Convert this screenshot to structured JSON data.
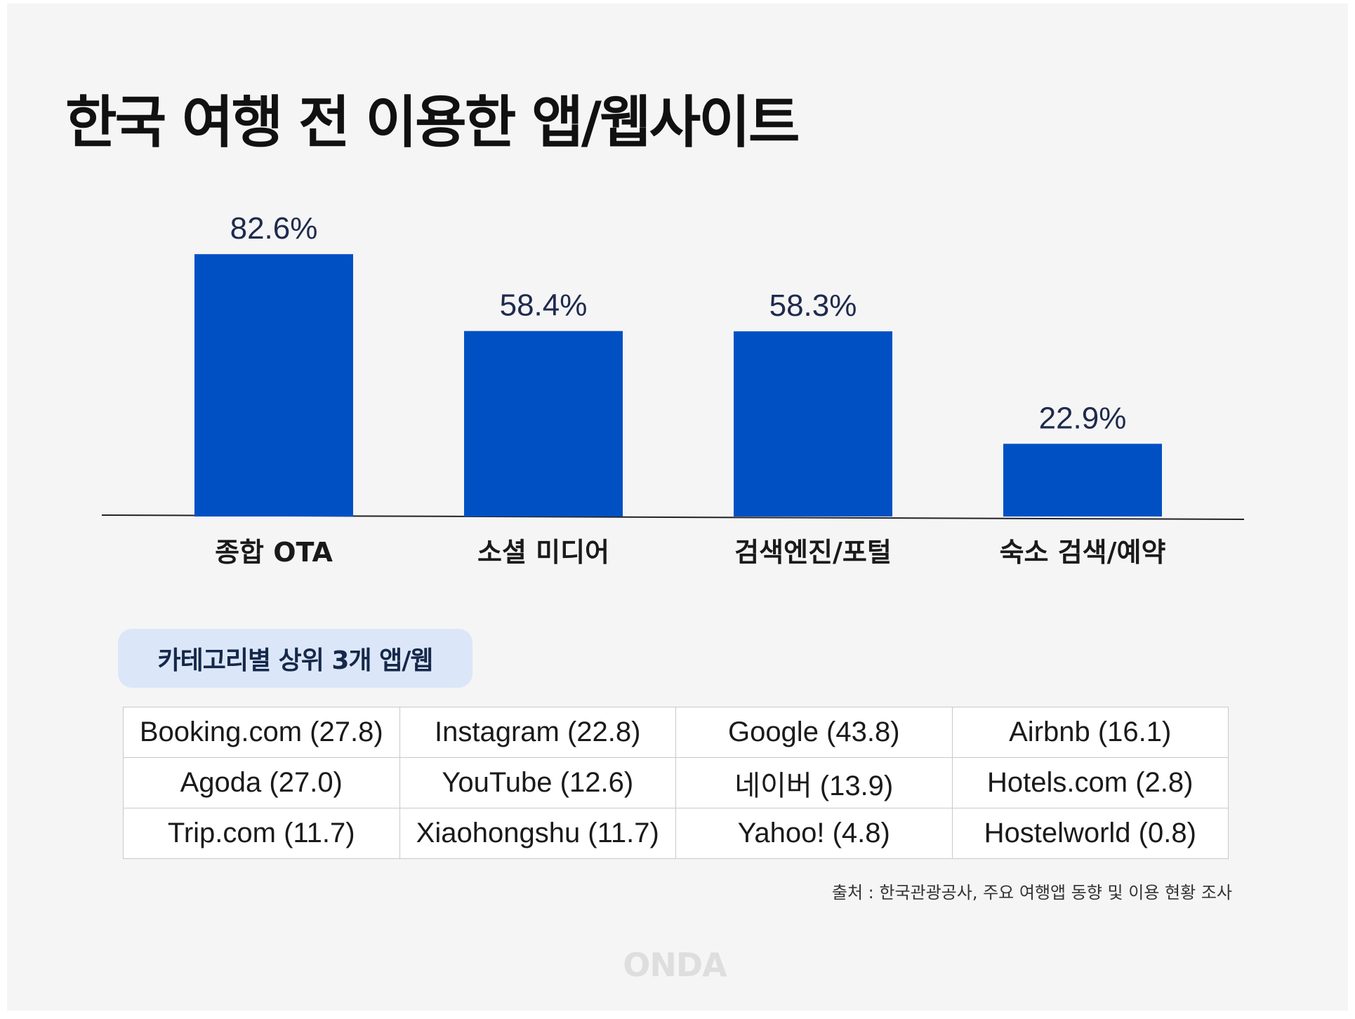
{
  "title": "한국 여행 전 이용한 앱/웹사이트",
  "chart_data": {
    "type": "bar",
    "categories": [
      "종합 OTA",
      "소셜 미디어",
      "검색엔진/포털",
      "숙소 검색/예약"
    ],
    "values": [
      82.6,
      58.4,
      58.3,
      22.9
    ],
    "value_labels": [
      "82.6%",
      "58.4%",
      "58.3%",
      "22.9%"
    ],
    "ylim": [
      0,
      100
    ],
    "grid": false,
    "bar_color": "#0050c4"
  },
  "table_header": "카테고리별 상위 3개 앱/웹",
  "table_rows": [
    [
      "Booking.com (27.8)",
      "Instagram (22.8)",
      "Google (43.8)",
      "Airbnb (16.1)"
    ],
    [
      "Agoda (27.0)",
      "YouTube (12.6)",
      "네이버 (13.9)",
      "Hotels.com (2.8)"
    ],
    [
      "Trip.com (11.7)",
      "Xiaohongshu (11.7)",
      "Yahoo! (4.8)",
      "Hostelworld (0.8)"
    ]
  ],
  "source": "출처 : 한국관광공사, 주요 여행앱 동향 및 이용 현황 조사",
  "logo_text": "ONDA"
}
